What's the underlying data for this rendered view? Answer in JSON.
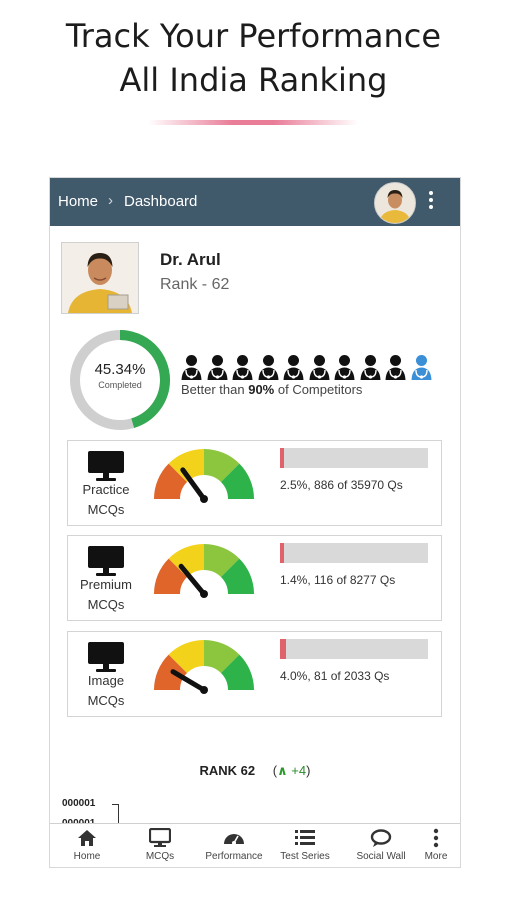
{
  "promo": {
    "line1": "Track Your Performance",
    "line2": "All India Ranking"
  },
  "topbar": {
    "crumb_home": "Home",
    "crumb_sep": "›",
    "crumb_dashboard": "Dashboard",
    "bg_color": "#40596b"
  },
  "profile": {
    "name": "Dr. Arul",
    "rank_text": "Rank - 62"
  },
  "completion": {
    "percent_text": "45.34%",
    "label": "Completed",
    "segments": {
      "green": 0.4534,
      "orange": 0.05,
      "grey": 0.4966
    }
  },
  "competitors": {
    "icon_count": 10,
    "highlighted_index": 9,
    "text_before": "Better than ",
    "text_bold": "90%",
    "text_after": " of Competitors"
  },
  "cards": [
    {
      "line1": "Practice",
      "line2": "MCQs",
      "stat": "2.5%, 886 of 35970 Qs",
      "progress": 0.025,
      "needle_level": 0.3
    },
    {
      "line1": "Premium",
      "line2": "MCQs",
      "stat": "1.4%, 116 of 8277 Qs",
      "progress": 0.014,
      "needle_level": 0.28
    },
    {
      "line1": "Image",
      "line2": "MCQs",
      "stat": "4.0%, 81 of 2033 Qs",
      "progress": 0.04,
      "needle_level": 0.17
    }
  ],
  "rank_summary": {
    "label": "RANK 62",
    "delta_open": "(",
    "delta_arrow": "^",
    "delta": "+4",
    "delta_close": ")"
  },
  "chart_axis": {
    "tick1": "000001",
    "tick2": "000001"
  },
  "bottom_nav": [
    {
      "label": "Home",
      "icon": "home-icon"
    },
    {
      "label": "MCQs",
      "icon": "monitor-icon"
    },
    {
      "label": "Performance",
      "icon": "speedometer-icon"
    },
    {
      "label": "Test Series",
      "icon": "list-icon"
    },
    {
      "label": "Social Wall",
      "icon": "chat-icon"
    },
    {
      "label": "More",
      "icon": "kebab-icon"
    }
  ],
  "colors": {
    "accent_green": "#34a853",
    "orange": "#e9773a",
    "grey_ring": "#cfcfcf",
    "bar_fill": "#e0626a",
    "gauge_red": "#e0652a",
    "gauge_yellow": "#f2d21a",
    "gauge_lightgreen": "#8cc63f",
    "gauge_green": "#2db34a",
    "highlight_blue": "#3a8fd6"
  }
}
